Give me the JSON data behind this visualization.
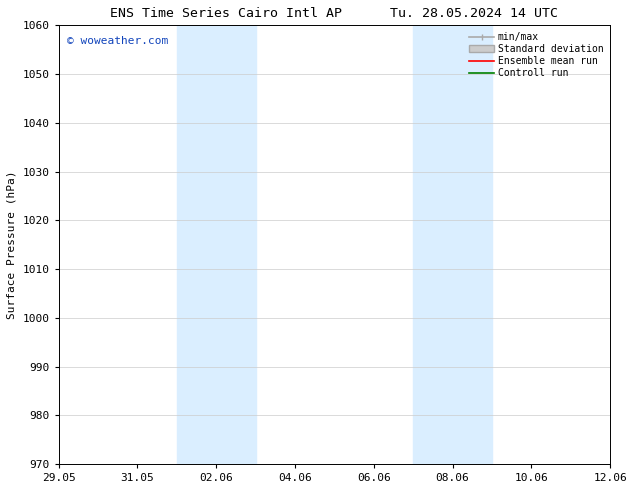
{
  "title_left": "ENS Time Series Cairo Intl AP",
  "title_right": "Tu. 28.05.2024 14 UTC",
  "ylabel": "Surface Pressure (hPa)",
  "ylim": [
    970,
    1060
  ],
  "yticks": [
    970,
    980,
    990,
    1000,
    1010,
    1020,
    1030,
    1040,
    1050,
    1060
  ],
  "xlim_start_days": 0,
  "xlim_end_days": 14,
  "xtick_day_offsets": [
    0,
    2,
    4,
    6,
    8,
    10,
    12,
    14
  ],
  "xtick_labels": [
    "29.05",
    "31.05",
    "02.06",
    "04.06",
    "06.06",
    "08.06",
    "10.06",
    "12.06"
  ],
  "shaded_bands": [
    {
      "x_start": 3,
      "x_end": 5
    },
    {
      "x_start": 9,
      "x_end": 11
    }
  ],
  "shaded_color": "#daeeff",
  "watermark_text": "© woweather.com",
  "watermark_color": "#1144bb",
  "legend_entries": [
    {
      "label": "min/max",
      "color": "#aaaaaa",
      "lw": 1.2
    },
    {
      "label": "Standard deviation",
      "color": "#cccccc",
      "lw": 5
    },
    {
      "label": "Ensemble mean run",
      "color": "red",
      "lw": 1.2
    },
    {
      "label": "Controll run",
      "color": "green",
      "lw": 1.2
    }
  ],
  "bg_color": "#ffffff",
  "grid_color": "#cccccc",
  "font_family": "DejaVu Sans Mono",
  "title_fontsize": 9.5,
  "axis_label_fontsize": 8,
  "tick_fontsize": 8,
  "watermark_fontsize": 8,
  "legend_fontsize": 7
}
